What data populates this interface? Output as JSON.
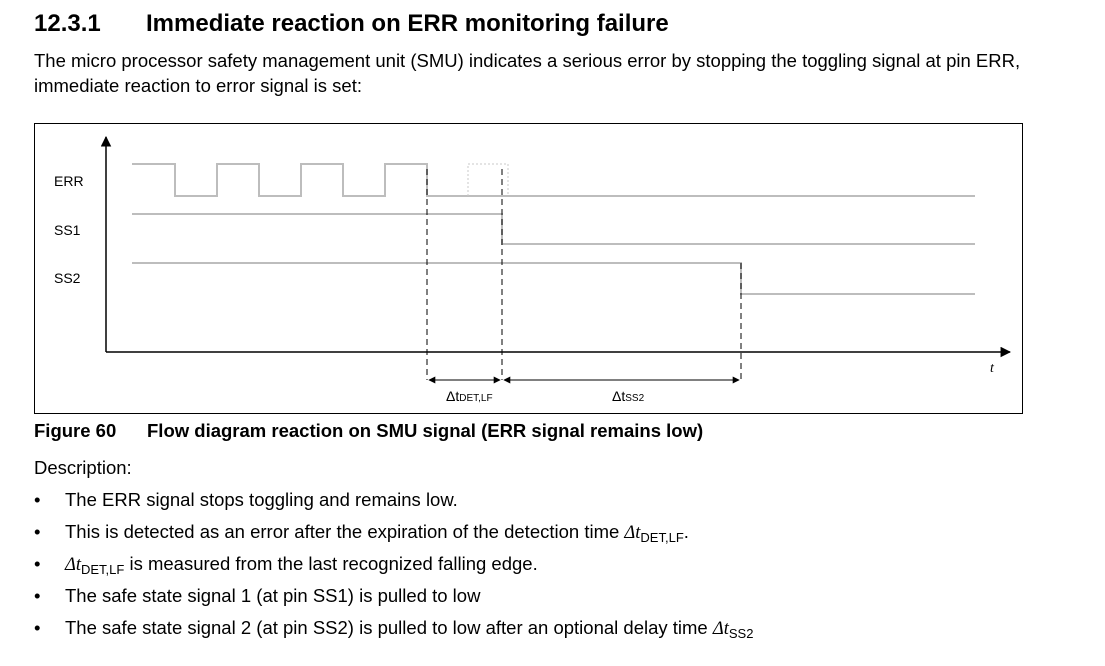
{
  "section": {
    "number": "12.3.1",
    "title": "Immediate reaction on ERR monitoring failure"
  },
  "intro": "The micro processor safety management unit (SMU) indicates a serious error by stopping the toggling signal at pin ERR, immediate reaction to error signal is set:",
  "figure": {
    "signals": [
      "ERR",
      "SS1",
      "SS2"
    ],
    "time_label": "t",
    "delta_det": {
      "symbol": "Δt",
      "sub": "DET,LF"
    },
    "delta_ss2": {
      "symbol": "Δt",
      "sub": "SS2"
    }
  },
  "caption": {
    "number": "Figure 60",
    "title": "Flow diagram reaction on SMU signal (ERR signal remains low)"
  },
  "description_label": "Description:",
  "bullets": [
    {
      "text": "The ERR signal stops toggling and remains low."
    },
    {
      "pre": "This is detected as an error after the expiration of the detection time ",
      "sym": "Δt",
      "sub": "DET,LF",
      "post": "."
    },
    {
      "sym": "Δt",
      "sub": "DET,LF",
      "post": " is measured from the last recognized falling edge."
    },
    {
      "text": "The safe state signal 1 (at pin SS1) is pulled to low"
    },
    {
      "pre": "The safe state signal 2 (at pin SS2) is pulled to low after an optional delay time ",
      "sym": "Δt",
      "sub": "SS2"
    }
  ],
  "colors": {
    "signal": "#bdbdbd",
    "axis": "#000000",
    "ghost": "#c8c8c8"
  }
}
